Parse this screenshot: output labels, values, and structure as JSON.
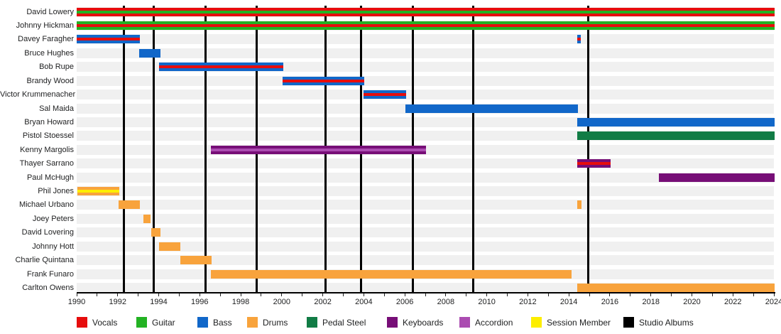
{
  "chart_data": {
    "type": "bar",
    "variant": "horizontal-timeline",
    "description": "Band membership timeline: rows are members, horizontal bars show tenure by instrument color, vertical black lines mark studio albums",
    "x_axis": {
      "start": 1990,
      "end": 2024,
      "tick_interval_years": 1,
      "label_interval_years": 2,
      "labels": [
        "1990",
        "1992",
        "1994",
        "1996",
        "1998",
        "2000",
        "2002",
        "2004",
        "2006",
        "2008",
        "2010",
        "2012",
        "2014",
        "2016",
        "2018",
        "2020",
        "2022",
        "2024"
      ]
    },
    "rows": [
      {
        "name": "David Lowery",
        "spans": [
          {
            "start": 1990.0,
            "end": 2024.05,
            "role": "vocals",
            "stripe": "guitar"
          }
        ]
      },
      {
        "name": "Johnny Hickman",
        "spans": [
          {
            "start": 1990.0,
            "end": 2024.05,
            "role": "guitar",
            "stripe": "vocals"
          }
        ]
      },
      {
        "name": "Davey Faragher",
        "spans": [
          {
            "start": 1990.0,
            "end": 1993.07,
            "role": "bass",
            "stripe": "vocals"
          },
          {
            "start": 2014.4,
            "end": 2014.58,
            "role": "bass",
            "stripe": "vocals"
          }
        ]
      },
      {
        "name": "Bruce Hughes",
        "spans": [
          {
            "start": 1993.05,
            "end": 1994.08,
            "role": "bass",
            "stripe": null
          }
        ]
      },
      {
        "name": "Bob Rupe",
        "spans": [
          {
            "start": 1994.03,
            "end": 2000.08,
            "role": "bass",
            "stripe": "vocals"
          }
        ]
      },
      {
        "name": "Brandy Wood",
        "spans": [
          {
            "start": 2000.03,
            "end": 2004.03,
            "role": "bass",
            "stripe": "vocals"
          }
        ]
      },
      {
        "name": "Victor Krummenacher",
        "spans": [
          {
            "start": 2004.0,
            "end": 2006.06,
            "role": "bass",
            "stripe": "vocals"
          }
        ]
      },
      {
        "name": "Sal Maida",
        "spans": [
          {
            "start": 2006.03,
            "end": 2014.44,
            "role": "bass",
            "stripe": null
          }
        ]
      },
      {
        "name": "Bryan Howard",
        "spans": [
          {
            "start": 2014.4,
            "end": 2024.05,
            "role": "bass",
            "stripe": null
          }
        ]
      },
      {
        "name": "Pistol Stoessel",
        "spans": [
          {
            "start": 2014.4,
            "end": 2024.05,
            "role": "pedal_steel",
            "stripe": null
          }
        ]
      },
      {
        "name": "Kenny Margolis",
        "spans": [
          {
            "start": 1996.53,
            "end": 2007.03,
            "role": "keyboards",
            "stripe": "accordion"
          }
        ]
      },
      {
        "name": "Thayer Sarrano",
        "spans": [
          {
            "start": 2014.4,
            "end": 2016.03,
            "role": "keyboards",
            "stripe": "vocals"
          }
        ]
      },
      {
        "name": "Paul McHugh",
        "spans": [
          {
            "start": 2018.4,
            "end": 2024.05,
            "role": "keyboards",
            "stripe": null
          }
        ]
      },
      {
        "name": "Phil Jones",
        "spans": [
          {
            "start": 1990.03,
            "end": 1992.07,
            "role": "drums",
            "stripe": "session_member"
          }
        ]
      },
      {
        "name": "Michael Urbano",
        "spans": [
          {
            "start": 1992.03,
            "end": 1993.07,
            "role": "drums",
            "stripe": null
          },
          {
            "start": 2014.4,
            "end": 2014.63,
            "role": "drums",
            "stripe": null
          }
        ]
      },
      {
        "name": "Joey Peters",
        "spans": [
          {
            "start": 1993.24,
            "end": 1993.6,
            "role": "drums",
            "stripe": null
          }
        ]
      },
      {
        "name": "David Lovering",
        "spans": [
          {
            "start": 1993.65,
            "end": 1994.08,
            "role": "drums",
            "stripe": null
          }
        ]
      },
      {
        "name": "Johnny Hott",
        "spans": [
          {
            "start": 1994.03,
            "end": 1995.07,
            "role": "drums",
            "stripe": null
          }
        ]
      },
      {
        "name": "Charlie Quintana",
        "spans": [
          {
            "start": 1995.05,
            "end": 1996.57,
            "role": "drums",
            "stripe": null
          }
        ]
      },
      {
        "name": "Frank Funaro",
        "spans": [
          {
            "start": 1996.53,
            "end": 2014.14,
            "role": "drums",
            "stripe": null
          }
        ]
      },
      {
        "name": "Carlton Owens",
        "spans": [
          {
            "start": 2014.4,
            "end": 2024.05,
            "role": "drums",
            "stripe": null
          }
        ]
      }
    ],
    "studio_album_lines_years": [
      1992.29,
      1993.77,
      1996.3,
      1998.79,
      2002.12,
      2003.85,
      2006.41,
      2009.32,
      2014.93
    ],
    "legend": [
      {
        "label": "Vocals",
        "key": "vocals"
      },
      {
        "label": "Guitar",
        "key": "guitar"
      },
      {
        "label": "Bass",
        "key": "bass"
      },
      {
        "label": "Drums",
        "key": "drums"
      },
      {
        "label": "Pedal Steel",
        "key": "pedal_steel"
      },
      {
        "label": "Keyboards",
        "key": "keyboards"
      },
      {
        "label": "Accordion",
        "key": "accordion"
      },
      {
        "label": "Session Member",
        "key": "session_member"
      },
      {
        "label": "Studio Albums",
        "key": "studio_albums"
      }
    ],
    "legend_position": "bottom",
    "colors": {
      "vocals": "#e60d0d",
      "guitar": "#23b223",
      "bass": "#1167c9",
      "drums": "#f8a33c",
      "pedal_steel": "#117c45",
      "keyboards": "#770e77",
      "accordion": "#ab4cb1",
      "session_member": "#fdee00",
      "studio_albums": "#000000",
      "row_band": "#f0f0f0"
    }
  }
}
